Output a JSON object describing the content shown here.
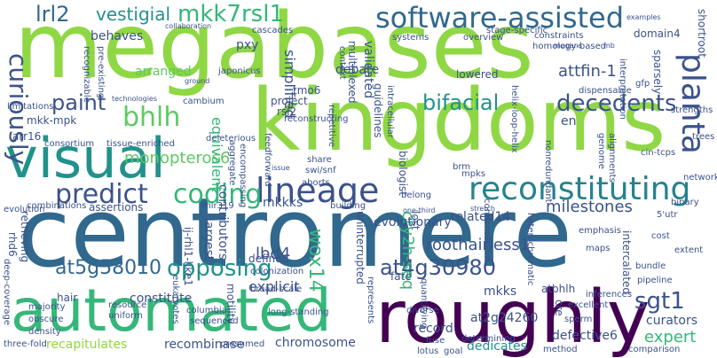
{
  "palette": {
    "dark_purple": "#440154",
    "indigo": "#3b528b",
    "blue": "#31688e",
    "teal": "#21918c",
    "cyan_teal": "#26828e",
    "green": "#35b779",
    "light_green": "#5ec962",
    "lime": "#8fd744",
    "yellow_green": "#b5de2b",
    "pale_green": "#a0da39"
  },
  "words": [
    {
      "text": "megabases"
    },
    {
      "text": "kingdoms"
    },
    {
      "text": "centromere"
    },
    {
      "text": "roughly"
    },
    {
      "text": "automated"
    },
    {
      "text": "visual"
    },
    {
      "text": "lineage"
    },
    {
      "text": "reconstituting"
    },
    {
      "text": "software-assisted"
    },
    {
      "text": "predict"
    },
    {
      "text": "coding"
    },
    {
      "text": "bhlh"
    },
    {
      "text": "bifacial"
    },
    {
      "text": "decedents"
    },
    {
      "text": "planta"
    },
    {
      "text": "mkk7rsl1"
    },
    {
      "text": "paint"
    },
    {
      "text": "curiously"
    },
    {
      "text": "lrl2"
    },
    {
      "text": "vestigial"
    },
    {
      "text": "opposing"
    },
    {
      "text": "at5g58010"
    },
    {
      "text": "at4g30980"
    },
    {
      "text": "sgt1"
    },
    {
      "text": "milestones"
    },
    {
      "text": "wox14"
    },
    {
      "text": "lbd4"
    },
    {
      "text": "roothairless1"
    },
    {
      "text": "cry2h-seq"
    },
    {
      "text": "monopteros6"
    },
    {
      "text": "explicit"
    },
    {
      "text": "attfin-1"
    },
    {
      "text": "recapitulates"
    },
    {
      "text": "recombinase"
    },
    {
      "text": "chromosome"
    },
    {
      "text": "record"
    },
    {
      "text": "dedicates"
    },
    {
      "text": "defective6"
    },
    {
      "text": "at2g24260"
    },
    {
      "text": "expert"
    },
    {
      "text": "curators"
    },
    {
      "text": "evolutionary"
    },
    {
      "text": "related14"
    },
    {
      "text": "mkkks"
    },
    {
      "text": "mkks"
    },
    {
      "text": "en"
    },
    {
      "text": "defined"
    },
    {
      "text": "largest"
    },
    {
      "text": "constitute"
    },
    {
      "text": "contributors"
    },
    {
      "text": "equivalent"
    },
    {
      "text": "simplified"
    },
    {
      "text": "arranged"
    },
    {
      "text": "behaves"
    },
    {
      "text": "pxy"
    },
    {
      "text": "debate"
    },
    {
      "text": "project"
    },
    {
      "text": "rsl2"
    },
    {
      "text": "tmo6"
    },
    {
      "text": "validated"
    },
    {
      "text": "multiplexed"
    },
    {
      "text": "guidelines"
    },
    {
      "text": "lowered"
    },
    {
      "text": "sparsely"
    },
    {
      "text": "shortroot"
    },
    {
      "text": "domain4"
    },
    {
      "text": "mkk-mpk"
    },
    {
      "text": "arr16"
    },
    {
      "text": "rhd6"
    },
    {
      "text": "hair"
    },
    {
      "text": "retrieving"
    },
    {
      "text": "uninterrupted"
    },
    {
      "text": "lost"
    },
    {
      "text": "atbhlh"
    },
    {
      "text": "intercalated"
    },
    {
      "text": "ij-rhl1-like1"
    },
    {
      "text": "assertions"
    },
    {
      "text": "biologist"
    },
    {
      "text": "mpks"
    },
    {
      "text": "cre"
    },
    {
      "text": "fate"
    },
    {
      "text": "motility"
    },
    {
      "text": "three-fold"
    },
    {
      "text": "presumed"
    },
    {
      "text": "eukaryotes"
    },
    {
      "text": "resource"
    },
    {
      "text": "uniform"
    },
    {
      "text": "combinations"
    },
    {
      "text": "deep-coverage"
    },
    {
      "text": "density"
    },
    {
      "text": "obscure"
    },
    {
      "text": "majority"
    },
    {
      "text": "sperm"
    },
    {
      "text": "excellent"
    },
    {
      "text": "pipeline"
    },
    {
      "text": "inferences"
    },
    {
      "text": "bundle"
    },
    {
      "text": "maps"
    },
    {
      "text": "cost"
    },
    {
      "text": "extent"
    },
    {
      "text": "comparison"
    },
    {
      "text": "goal"
    },
    {
      "text": "fuse"
    },
    {
      "text": "columbia"
    },
    {
      "text": "sequenced"
    },
    {
      "text": "long-standing"
    },
    {
      "text": "broad-scale"
    },
    {
      "text": "diverse"
    },
    {
      "text": "represents"
    },
    {
      "text": "quantifying"
    },
    {
      "text": "emphasis"
    },
    {
      "text": "method"
    },
    {
      "text": "determining"
    },
    {
      "text": "lotus"
    },
    {
      "text": "condensation"
    },
    {
      "text": "heterochromatic"
    },
    {
      "text": "nonredundant"
    },
    {
      "text": "intracellular"
    },
    {
      "text": "belong"
    },
    {
      "text": "aborts"
    },
    {
      "text": "share"
    },
    {
      "text": "repetitive"
    },
    {
      "text": "swi/snf"
    },
    {
      "text": "brm"
    },
    {
      "text": "helix-loop-helix"
    },
    {
      "text": "genome"
    },
    {
      "text": "alignments"
    },
    {
      "text": "cin-tcps"
    },
    {
      "text": "trees"
    },
    {
      "text": "network"
    },
    {
      "text": "strengths"
    },
    {
      "text": "interpretation"
    },
    {
      "text": "gfp"
    },
    {
      "text": "dispensable"
    },
    {
      "text": "systems"
    },
    {
      "text": "overview"
    },
    {
      "text": "constraints"
    },
    {
      "text": "homology-based"
    },
    {
      "text": "stage-specific"
    },
    {
      "text": "context"
    },
    {
      "text": "reconstructing"
    },
    {
      "text": "feedforward"
    },
    {
      "text": "cambium"
    },
    {
      "text": "japonicus"
    },
    {
      "text": "cascades"
    },
    {
      "text": "collaboration"
    },
    {
      "text": "deleterious"
    },
    {
      "text": "consortium"
    },
    {
      "text": "tissue-enriched"
    },
    {
      "text": "limitations"
    },
    {
      "text": "technologies"
    },
    {
      "text": "recognizable"
    },
    {
      "text": "pre-existing"
    },
    {
      "text": "encompassing"
    },
    {
      "text": "aggregate"
    },
    {
      "text": "colonization"
    },
    {
      "text": "mir319"
    },
    {
      "text": "building"
    },
    {
      "text": "one-third"
    },
    {
      "text": "stretch"
    },
    {
      "text": "5'utr"
    },
    {
      "text": "binary"
    },
    {
      "text": "evolution"
    },
    {
      "text": "issue"
    },
    {
      "text": "ground"
    },
    {
      "text": "megans"
    },
    {
      "text": "mb"
    },
    {
      "text": "examples"
    }
  ]
}
